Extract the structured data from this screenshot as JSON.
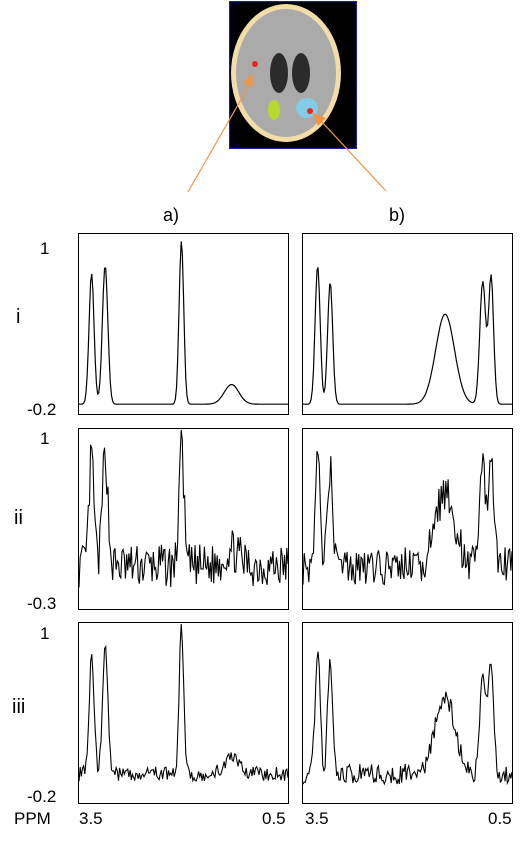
{
  "column_labels": [
    "a)",
    "b)"
  ],
  "row_labels": [
    "i",
    "ii",
    "iii"
  ],
  "y_ticks": [
    {
      "top": "1",
      "bottom": "-0.2"
    },
    {
      "top": "1",
      "bottom": "-0.3"
    },
    {
      "top": "1",
      "bottom": "-0.2"
    }
  ],
  "x_axis": {
    "unit_label": "PPM",
    "left_tick": "3.5",
    "right_tick": "0.5"
  },
  "colors": {
    "phantom_bg": "#000000",
    "phantom_frame": "#1a1aa8",
    "skull": "#f2dca8",
    "brain": "#aaaaaa",
    "ventricles": "#2b2b2b",
    "lesion_green": "#b7d82c",
    "lesion_cyan": "#82cde6",
    "voxel_marker": "#e8261e",
    "arrow": "#f0954a"
  }
}
